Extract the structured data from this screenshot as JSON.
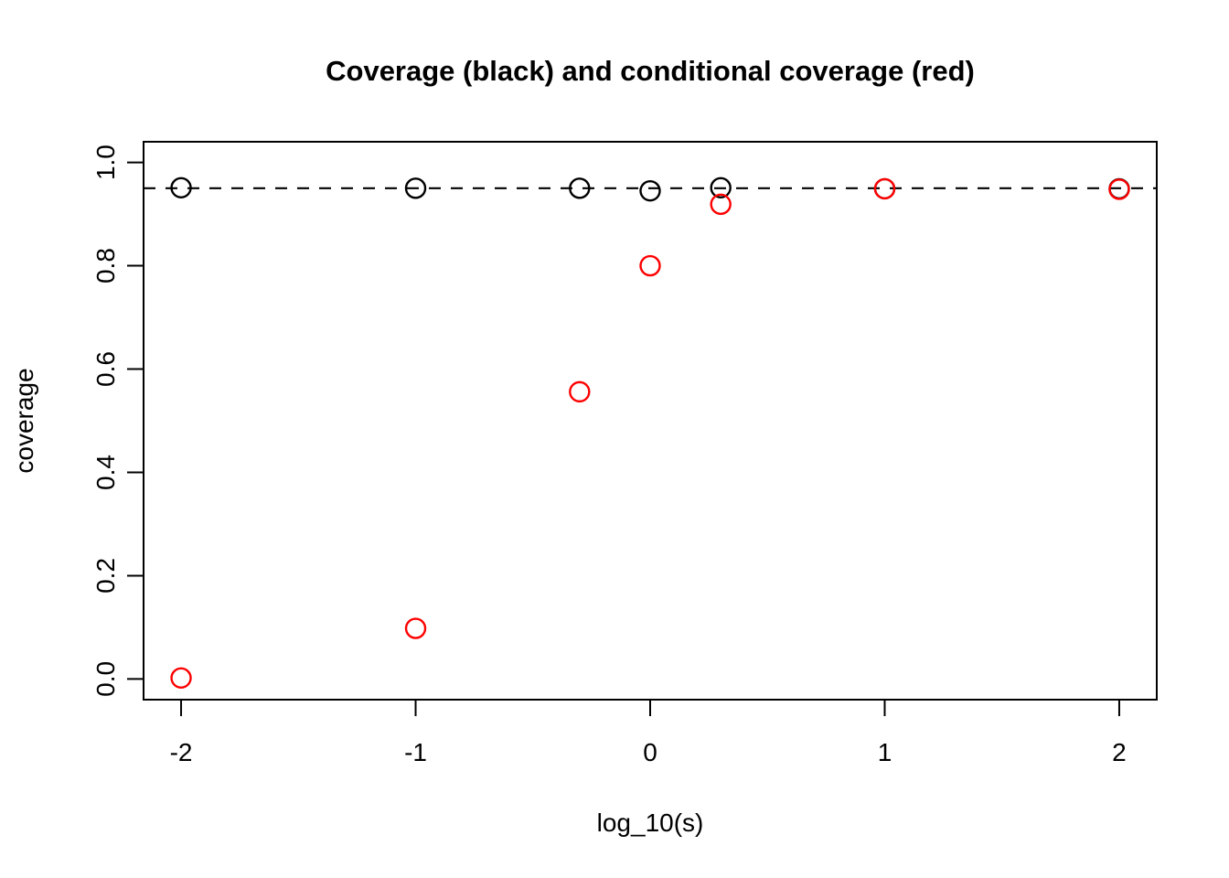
{
  "figure": {
    "background": "#ffffff"
  },
  "chart_data": {
    "type": "scatter",
    "title": "Coverage (black) and conditional coverage (red)",
    "xlabel": "log_10(s)",
    "ylabel": "coverage",
    "x": [
      -2,
      -1,
      -0.301,
      0,
      0.301,
      1,
      2
    ],
    "series": [
      {
        "name": "coverage",
        "color": "#000000",
        "values": [
          0.951,
          0.95,
          0.95,
          0.945,
          0.951,
          0.949,
          0.949
        ]
      },
      {
        "name": "conditional coverage",
        "color": "#ff0000",
        "values": [
          0.002,
          0.098,
          0.556,
          0.8,
          0.919,
          0.949,
          0.948
        ]
      }
    ],
    "reference_line": {
      "y": 0.95,
      "style": "dashed",
      "color": "#000000"
    },
    "x_ticks": [
      -2,
      -1,
      0,
      1,
      2
    ],
    "x_tick_labels": [
      "-2",
      "-1",
      "0",
      "1",
      "2"
    ],
    "y_ticks": [
      0.0,
      0.2,
      0.4,
      0.6,
      0.8,
      1.0
    ],
    "y_tick_labels": [
      "0.0",
      "0.2",
      "0.4",
      "0.6",
      "0.8",
      "1.0"
    ],
    "xlim": [
      -2.16,
      2.16
    ],
    "ylim": [
      -0.04,
      1.04
    ],
    "grid": false,
    "legend": "none",
    "marker": "open-circle"
  }
}
